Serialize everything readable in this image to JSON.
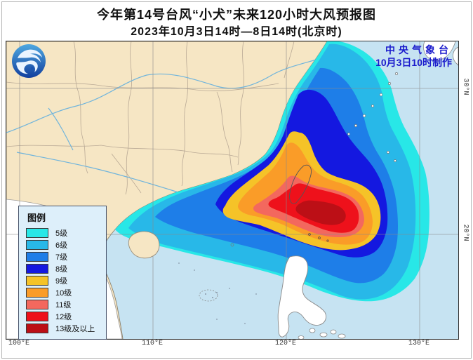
{
  "title": {
    "line1": "今年第14号台风“小犬”未来120小时大风预报图",
    "line2": "2023年10月3日14时—8日14时(北京时)"
  },
  "agency": {
    "line1": "中央气象台",
    "line2": "10月3日10时制作",
    "color": "#1a1acc"
  },
  "legend": {
    "title": "图例",
    "items": [
      {
        "label": "5级",
        "color": "#28e7e7"
      },
      {
        "label": "6级",
        "color": "#28b8e8"
      },
      {
        "label": "7级",
        "color": "#1e7ee8"
      },
      {
        "label": "8级",
        "color": "#1418e0"
      },
      {
        "label": "9级",
        "color": "#f5c328"
      },
      {
        "label": "10级",
        "color": "#fa9c28"
      },
      {
        "label": "11级",
        "color": "#f3685e"
      },
      {
        "label": "12级",
        "color": "#ee111b"
      },
      {
        "label": "13级及以上",
        "color": "#bc0f16"
      }
    ]
  },
  "axes": {
    "lon": [
      "100°E",
      "110°E",
      "120°E",
      "130°E"
    ],
    "lat": [
      "30°N",
      "20°N"
    ]
  },
  "map": {
    "colors": {
      "sea": "#c6e3f2",
      "china_land": "#f6e6c4",
      "foreign_land": "#ffffff",
      "river": "#6fb4dc",
      "boundary": "#b3a391",
      "coast": "#8a7f6a",
      "grid": "#8a8a8a",
      "island_outline": "#555555"
    },
    "logo": "cma-logo"
  }
}
